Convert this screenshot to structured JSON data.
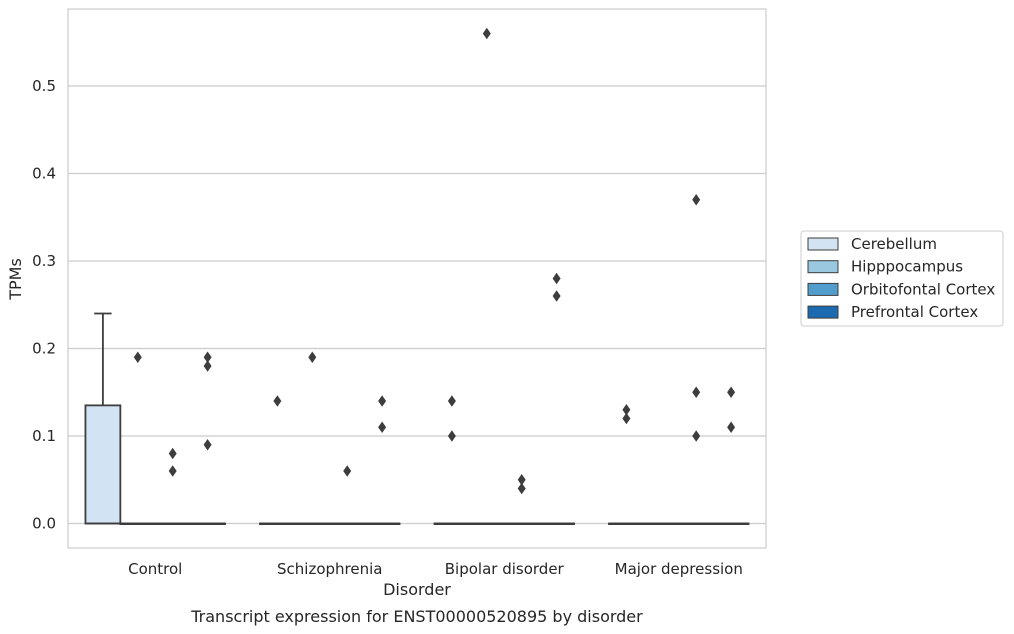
{
  "chart_data": {
    "type": "box",
    "title": "Transcript expression for ENST00000520895 by disorder",
    "xlabel": "Disorder",
    "ylabel": "TPMs",
    "ylim": [
      -0.028,
      0.588
    ],
    "y_ticks": [
      "0.0",
      "0.1",
      "0.2",
      "0.3",
      "0.4",
      "0.5"
    ],
    "y_tick_values": [
      0.0,
      0.1,
      0.2,
      0.3,
      0.4,
      0.5
    ],
    "grid": "horizontal",
    "legend_position": "right",
    "categories": [
      "Control",
      "Schizophrenia",
      "Bipolar disorder",
      "Major depression"
    ],
    "series": [
      {
        "name": "Cerebellum",
        "color": "#d2e3f3",
        "boxes": [
          {
            "q1": 0.0,
            "median": 0.0,
            "q3": 0.135,
            "whisker_low": 0.0,
            "whisker_high": 0.24,
            "outliers": []
          },
          {
            "q1": 0.0,
            "median": 0.0,
            "q3": 0.0,
            "whisker_low": 0.0,
            "whisker_high": 0.0,
            "outliers": [
              0.14
            ]
          },
          {
            "q1": 0.0,
            "median": 0.0,
            "q3": 0.0,
            "whisker_low": 0.0,
            "whisker_high": 0.0,
            "outliers": [
              0.14,
              0.1
            ]
          },
          {
            "q1": 0.0,
            "median": 0.0,
            "q3": 0.0,
            "whisker_low": 0.0,
            "whisker_high": 0.0,
            "outliers": [
              0.13,
              0.12
            ]
          }
        ]
      },
      {
        "name": "Hipppocampus",
        "color": "#9ac8e0",
        "boxes": [
          {
            "q1": 0.0,
            "median": 0.0,
            "q3": 0.0,
            "whisker_low": 0.0,
            "whisker_high": 0.0,
            "outliers": [
              0.19
            ]
          },
          {
            "q1": 0.0,
            "median": 0.0,
            "q3": 0.0,
            "whisker_low": 0.0,
            "whisker_high": 0.0,
            "outliers": [
              0.19
            ]
          },
          {
            "q1": 0.0,
            "median": 0.0,
            "q3": 0.0,
            "whisker_low": 0.0,
            "whisker_high": 0.0,
            "outliers": [
              0.56
            ]
          },
          {
            "q1": 0.0,
            "median": 0.0,
            "q3": 0.0,
            "whisker_low": 0.0,
            "whisker_high": 0.0,
            "outliers": []
          }
        ]
      },
      {
        "name": "Orbitofontal Cortex",
        "color": "#529dcc",
        "boxes": [
          {
            "q1": 0.0,
            "median": 0.0,
            "q3": 0.0,
            "whisker_low": 0.0,
            "whisker_high": 0.0,
            "outliers": [
              0.08,
              0.06
            ]
          },
          {
            "q1": 0.0,
            "median": 0.0,
            "q3": 0.0,
            "whisker_low": 0.0,
            "whisker_high": 0.0,
            "outliers": [
              0.06
            ]
          },
          {
            "q1": 0.0,
            "median": 0.0,
            "q3": 0.0,
            "whisker_low": 0.0,
            "whisker_high": 0.0,
            "outliers": [
              0.05,
              0.04
            ]
          },
          {
            "q1": 0.0,
            "median": 0.0,
            "q3": 0.0,
            "whisker_low": 0.0,
            "whisker_high": 0.0,
            "outliers": [
              0.37,
              0.15,
              0.1
            ]
          }
        ]
      },
      {
        "name": "Prefrontal Cortex",
        "color": "#1c6aaf",
        "boxes": [
          {
            "q1": 0.0,
            "median": 0.0,
            "q3": 0.0,
            "whisker_low": 0.0,
            "whisker_high": 0.0,
            "outliers": [
              0.19,
              0.18,
              0.09
            ]
          },
          {
            "q1": 0.0,
            "median": 0.0,
            "q3": 0.0,
            "whisker_low": 0.0,
            "whisker_high": 0.0,
            "outliers": [
              0.14,
              0.11
            ]
          },
          {
            "q1": 0.0,
            "median": 0.0,
            "q3": 0.0,
            "whisker_low": 0.0,
            "whisker_high": 0.0,
            "outliers": [
              0.28,
              0.26
            ]
          },
          {
            "q1": 0.0,
            "median": 0.0,
            "q3": 0.0,
            "whisker_low": 0.0,
            "whisker_high": 0.0,
            "outliers": [
              0.15,
              0.11
            ]
          }
        ]
      }
    ]
  }
}
